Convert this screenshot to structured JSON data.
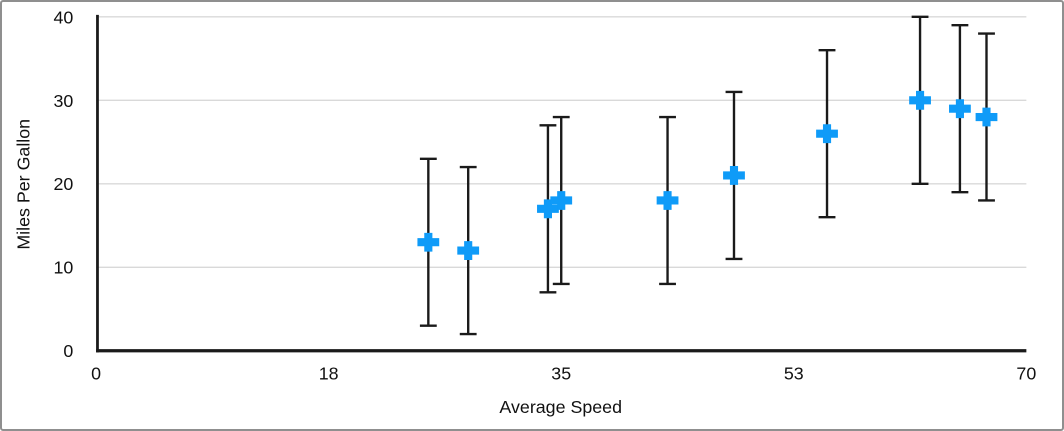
{
  "figure": {
    "background_color": "#ffffff",
    "frame_border_color": "#8f8f8f"
  },
  "chart_data": {
    "type": "scatter",
    "title": "",
    "xlabel": "Average Speed",
    "ylabel": "Miles Per Gallon",
    "xlim": [
      0,
      70
    ],
    "ylim": [
      0,
      40
    ],
    "x_ticks": [
      0,
      17.5,
      35,
      52.5,
      70
    ],
    "x_tick_labels": [
      "0",
      "18",
      "35",
      "53",
      "70"
    ],
    "y_ticks": [
      0,
      10,
      20,
      30,
      40
    ],
    "y_tick_labels": [
      "0",
      "10",
      "20",
      "30",
      "40"
    ],
    "grid": "horizontal-gridlines-on",
    "legend": "none",
    "marker_shape": "plus",
    "marker_color": "#0F9BF8",
    "error_bar_color": "#1a1a1a",
    "error_bar_type": "y-symmetric",
    "gridline_color": "#d9d9d9",
    "axis_color": "#1a1a1a",
    "points": [
      {
        "x": 25,
        "y": 13,
        "error_y": 10
      },
      {
        "x": 28,
        "y": 12,
        "error_y": 10
      },
      {
        "x": 34,
        "y": 17,
        "error_y": 10
      },
      {
        "x": 35,
        "y": 18,
        "error_y": 10
      },
      {
        "x": 43,
        "y": 18,
        "error_y": 10
      },
      {
        "x": 48,
        "y": 21,
        "error_y": 10
      },
      {
        "x": 55,
        "y": 26,
        "error_y": 10
      },
      {
        "x": 62,
        "y": 30,
        "error_y": 10
      },
      {
        "x": 65,
        "y": 29,
        "error_y": 10
      },
      {
        "x": 67,
        "y": 28,
        "error_y": 10
      }
    ]
  }
}
